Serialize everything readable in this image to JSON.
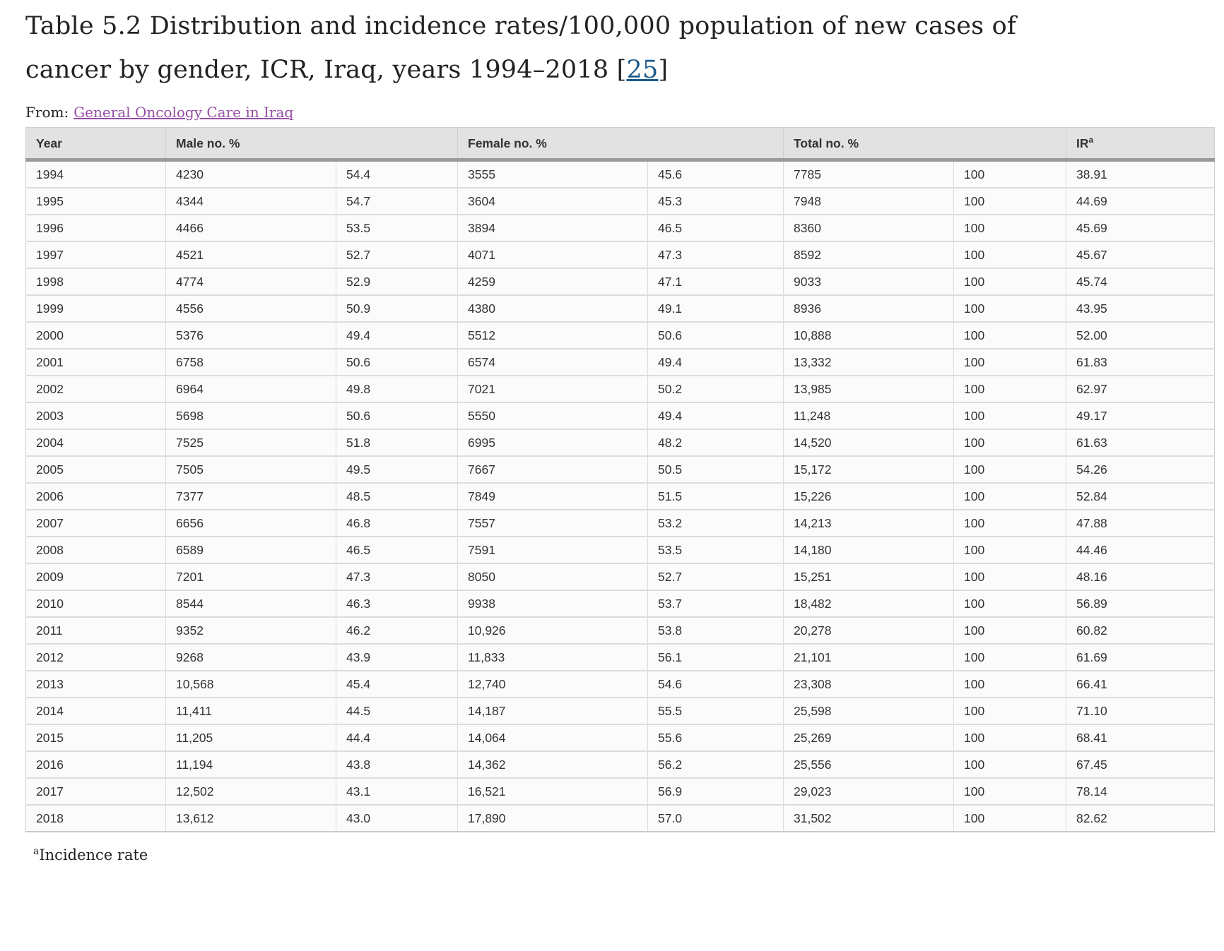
{
  "title": {
    "text": "Table 5.2 Distribution and incidence rates/100,000 population of new cases of cancer by gender, ICR, Iraq, years 1994–2018",
    "citation_open": " [",
    "citation_ref": "25",
    "citation_close": "]"
  },
  "source_line": {
    "label": "From:",
    "link_text": "General Oncology Care in Iraq"
  },
  "table": {
    "headers": {
      "year": "Year",
      "male": "Male no. %",
      "female": "Female no. %",
      "total": "Total no. %",
      "ir_base": "IR",
      "ir_sup": "a"
    },
    "column_meaning": [
      "Year",
      "Male no.",
      "Male %",
      "Female no.",
      "Female %",
      "Total no.",
      "Total %",
      "Incidence rate"
    ],
    "rows": [
      [
        "1994",
        "4230",
        "54.4",
        "3555",
        "45.6",
        "7785",
        "100",
        "38.91"
      ],
      [
        "1995",
        "4344",
        "54.7",
        "3604",
        "45.3",
        "7948",
        "100",
        "44.69"
      ],
      [
        "1996",
        "4466",
        "53.5",
        "3894",
        "46.5",
        "8360",
        "100",
        "45.69"
      ],
      [
        "1997",
        "4521",
        "52.7",
        "4071",
        "47.3",
        "8592",
        "100",
        "45.67"
      ],
      [
        "1998",
        "4774",
        "52.9",
        "4259",
        "47.1",
        "9033",
        "100",
        "45.74"
      ],
      [
        "1999",
        "4556",
        "50.9",
        "4380",
        "49.1",
        "8936",
        "100",
        "43.95"
      ],
      [
        "2000",
        "5376",
        "49.4",
        "5512",
        "50.6",
        "10,888",
        "100",
        "52.00"
      ],
      [
        "2001",
        "6758",
        "50.6",
        "6574",
        "49.4",
        "13,332",
        "100",
        "61.83"
      ],
      [
        "2002",
        "6964",
        "49.8",
        "7021",
        "50.2",
        "13,985",
        "100",
        "62.97"
      ],
      [
        "2003",
        "5698",
        "50.6",
        "5550",
        "49.4",
        "11,248",
        "100",
        "49.17"
      ],
      [
        "2004",
        "7525",
        "51.8",
        "6995",
        "48.2",
        "14,520",
        "100",
        "61.63"
      ],
      [
        "2005",
        "7505",
        "49.5",
        "7667",
        "50.5",
        "15,172",
        "100",
        "54.26"
      ],
      [
        "2006",
        "7377",
        "48.5",
        "7849",
        "51.5",
        "15,226",
        "100",
        "52.84"
      ],
      [
        "2007",
        "6656",
        "46.8",
        "7557",
        "53.2",
        "14,213",
        "100",
        "47.88"
      ],
      [
        "2008",
        "6589",
        "46.5",
        "7591",
        "53.5",
        "14,180",
        "100",
        "44.46"
      ],
      [
        "2009",
        "7201",
        "47.3",
        "8050",
        "52.7",
        "15,251",
        "100",
        "48.16"
      ],
      [
        "2010",
        "8544",
        "46.3",
        "9938",
        "53.7",
        "18,482",
        "100",
        "56.89"
      ],
      [
        "2011",
        "9352",
        "46.2",
        "10,926",
        "53.8",
        "20,278",
        "100",
        "60.82"
      ],
      [
        "2012",
        "9268",
        "43.9",
        "11,833",
        "56.1",
        "21,101",
        "100",
        "61.69"
      ],
      [
        "2013",
        "10,568",
        "45.4",
        "12,740",
        "54.6",
        "23,308",
        "100",
        "66.41"
      ],
      [
        "2014",
        "11,411",
        "44.5",
        "14,187",
        "55.5",
        "25,598",
        "100",
        "71.10"
      ],
      [
        "2015",
        "11,205",
        "44.4",
        "14,064",
        "55.6",
        "25,269",
        "100",
        "68.41"
      ],
      [
        "2016",
        "11,194",
        "43.8",
        "14,362",
        "56.2",
        "25,556",
        "100",
        "67.45"
      ],
      [
        "2017",
        "12,502",
        "43.1",
        "16,521",
        "56.9",
        "29,023",
        "100",
        "78.14"
      ],
      [
        "2018",
        "13,612",
        "43.0",
        "17,890",
        "57.0",
        "31,502",
        "100",
        "82.62"
      ]
    ]
  },
  "footnote": {
    "sup": "a",
    "text": "Incidence rate"
  },
  "colors": {
    "citation_link": "#1b5a8c",
    "source_link_purple": "#9550a5",
    "header_background": "#e2e2e2",
    "header_rule": "#9a9a9a",
    "cell_border": "#dcdcdc",
    "body_background": "#fbfbfb",
    "text_dark": "#222222",
    "cell_text": "#333333"
  }
}
